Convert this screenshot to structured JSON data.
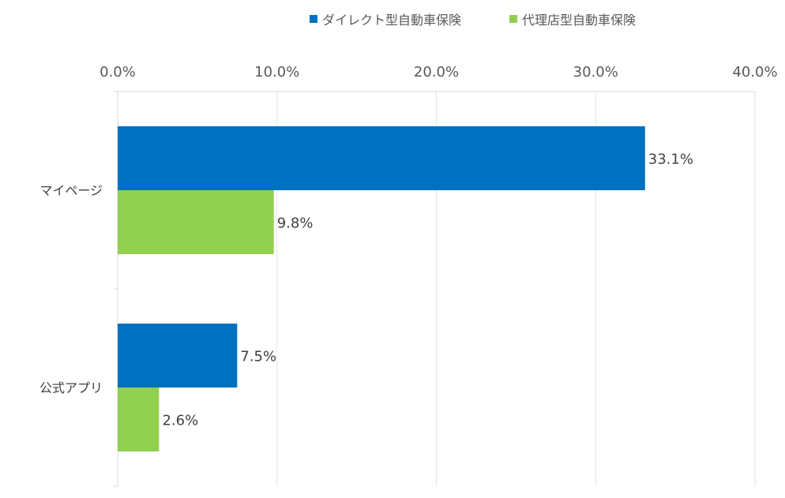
{
  "chart_data": {
    "type": "bar",
    "orientation": "horizontal",
    "categories": [
      "マイページ",
      "公式アプリ"
    ],
    "series": [
      {
        "name": "ダイレクト型自動車保険",
        "values": [
          33.1,
          7.5
        ],
        "color": "#0070C0"
      },
      {
        "name": "代理店型自動車保険",
        "values": [
          9.8,
          2.6
        ],
        "color": "#92D050"
      }
    ],
    "value_labels": [
      [
        "33.1%",
        "7.5%"
      ],
      [
        "9.8%",
        "2.6%"
      ]
    ],
    "xlim": [
      0,
      40
    ],
    "xticks": [
      0,
      10,
      20,
      30,
      40
    ],
    "xtick_labels": [
      "0.0%",
      "10.0%",
      "20.0%",
      "30.0%",
      "40.0%"
    ],
    "axis_position": "top",
    "legend_position": "top",
    "grid": true
  }
}
